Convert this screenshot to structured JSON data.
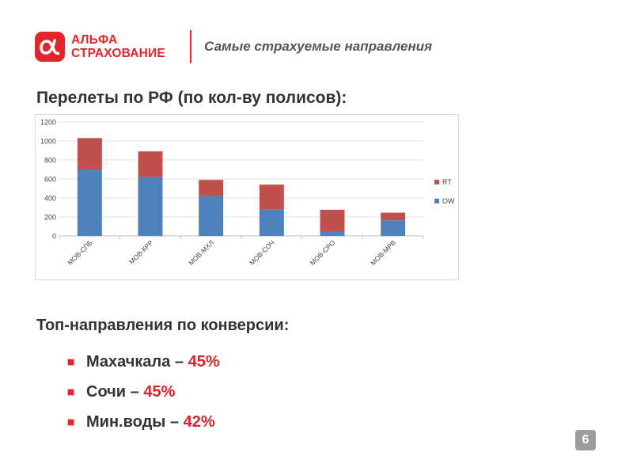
{
  "header": {
    "logo_line1": "АЛЬФА",
    "logo_line2": "СТРАХОВАНИЕ",
    "logo_glyph": "α",
    "title": "Самые страхуемые направления",
    "brand_color": "#e3262b"
  },
  "flights": {
    "heading": "Перелеты по РФ (по кол-ву полисов):"
  },
  "chart_data": {
    "type": "bar",
    "stacked": true,
    "categories": [
      "МОВ-СПБ",
      "МОВ-КРР",
      "МОВ-МХЛ",
      "МОВ-СОЧ",
      "МОВ-СРО",
      "МОВ-МРВ"
    ],
    "series": [
      {
        "name": "OW",
        "color": "#4f81bd",
        "values": [
          700,
          620,
          420,
          280,
          50,
          165
        ]
      },
      {
        "name": "RT",
        "color": "#c0504d",
        "values": [
          330,
          270,
          170,
          260,
          225,
          80
        ]
      }
    ],
    "ylim": [
      0,
      1200
    ],
    "yticks": [
      0,
      200,
      400,
      600,
      800,
      1000,
      1200
    ],
    "grid": true,
    "legend": "right",
    "title": "",
    "xlabel": "",
    "ylabel": ""
  },
  "conversion": {
    "heading": "Топ-направления по конверсии:",
    "items": [
      {
        "city": "Махачкала",
        "sep": " – ",
        "pct": "45%"
      },
      {
        "city": "Сочи",
        "sep": " – ",
        "pct": "45%"
      },
      {
        "city": "Мин.воды",
        "sep": " – ",
        "pct": "42%"
      }
    ]
  },
  "page": {
    "number": "6"
  }
}
